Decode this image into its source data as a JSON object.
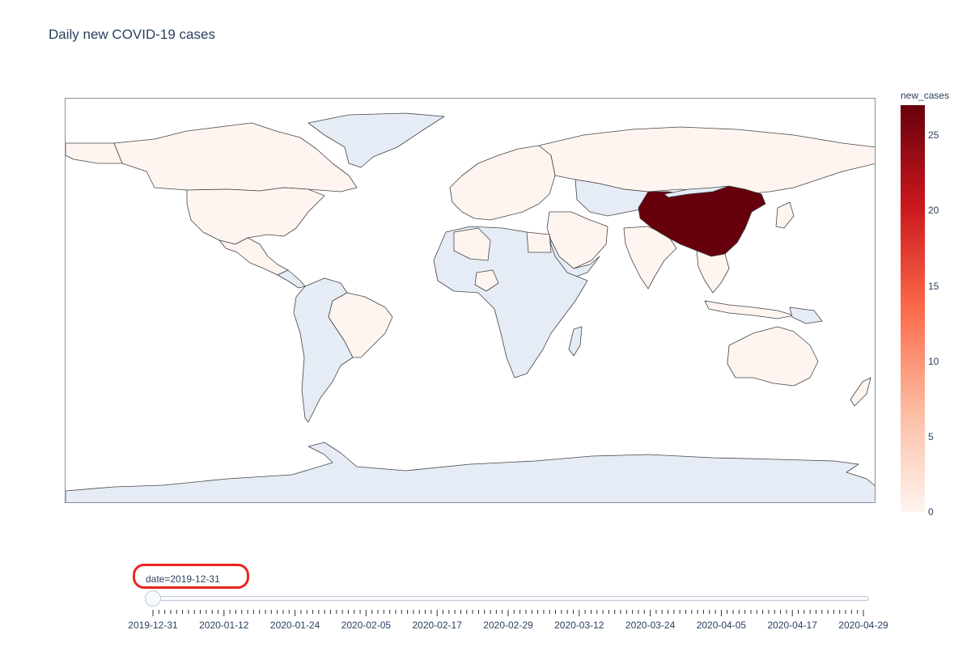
{
  "title": "Daily new COVID-19 cases",
  "chart_data": {
    "type": "choropleth",
    "title": "Daily new COVID-19 cases",
    "projection": "equirectangular",
    "color_variable": "new_cases",
    "colorscale": [
      "#fff5f0",
      "#fcbba1",
      "#fb6a4a",
      "#cb181d",
      "#67000d"
    ],
    "color_range": [
      0,
      27
    ],
    "colorbar": {
      "title": "new_cases",
      "ticks": [
        0,
        5,
        10,
        15,
        20,
        25
      ],
      "tick_labels": [
        "0",
        "5",
        "10",
        "15",
        "20",
        "25"
      ]
    },
    "no_data_color": "#e5ecf6",
    "frame_date": "2019-12-31",
    "values": [
      {
        "location": "China",
        "new_cases": 27
      },
      {
        "location": "United States",
        "new_cases": 0
      },
      {
        "location": "Canada",
        "new_cases": 0
      },
      {
        "location": "Mexico",
        "new_cases": 0
      },
      {
        "location": "Brazil",
        "new_cases": 0
      },
      {
        "location": "Russia",
        "new_cases": 0
      },
      {
        "location": "India",
        "new_cases": 0
      },
      {
        "location": "Australia",
        "new_cases": 0
      },
      {
        "location": "Algeria",
        "new_cases": 0
      },
      {
        "location": "Egypt",
        "new_cases": 0
      },
      {
        "location": "Nigeria",
        "new_cases": 0
      },
      {
        "location": "Iran",
        "new_cases": 0
      },
      {
        "location": "Saudi Arabia",
        "new_cases": 0
      },
      {
        "location": "Japan",
        "new_cases": 0
      },
      {
        "location": "South Korea",
        "new_cases": 0
      },
      {
        "location": "Thailand",
        "new_cases": 0
      },
      {
        "location": "Vietnam",
        "new_cases": 0
      },
      {
        "location": "Indonesia",
        "new_cases": 0
      },
      {
        "location": "Europe",
        "new_cases": 0
      }
    ]
  },
  "slider": {
    "current_label": "date=2019-12-31",
    "current_date": "2019-12-31",
    "tick_labels": [
      "2019-12-31",
      "2020-01-12",
      "2020-01-24",
      "2020-02-05",
      "2020-02-17",
      "2020-02-29",
      "2020-03-12",
      "2020-03-24",
      "2020-04-05",
      "2020-04-17",
      "2020-04-29"
    ]
  }
}
